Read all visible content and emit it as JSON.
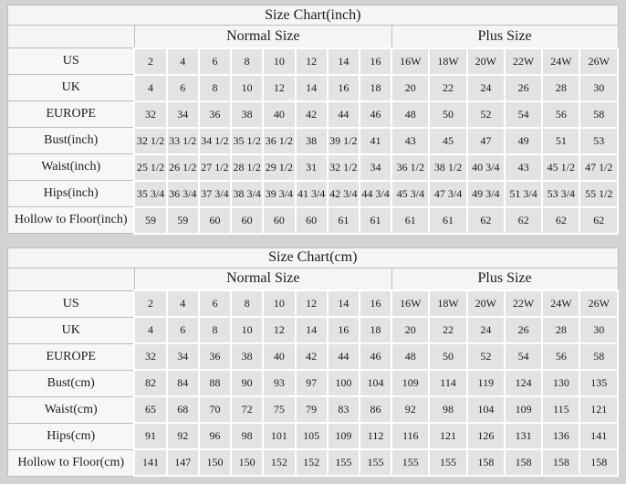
{
  "colors": {
    "page_bg": "#d3d3d3",
    "header_bg": "#f5f5f5",
    "label_bg": "#f7f7f7",
    "cell_bg": "#e3e3e3",
    "cell_gap": "#ffffff",
    "grid_line": "#bdbdbd",
    "text": "#1c1c1c"
  },
  "chart_data": [
    {
      "type": "table",
      "title": "Size Chart(inch)",
      "column_groups": [
        {
          "label": "Normal Size",
          "span": 8
        },
        {
          "label": "Plus Size",
          "span": 6
        }
      ],
      "rows": [
        {
          "label": "US",
          "normal": [
            "2",
            "4",
            "6",
            "8",
            "10",
            "12",
            "14",
            "16"
          ],
          "plus": [
            "16W",
            "18W",
            "20W",
            "22W",
            "24W",
            "26W"
          ]
        },
        {
          "label": "UK",
          "normal": [
            "4",
            "6",
            "8",
            "10",
            "12",
            "14",
            "16",
            "18"
          ],
          "plus": [
            "20",
            "22",
            "24",
            "26",
            "28",
            "30"
          ]
        },
        {
          "label": "EUROPE",
          "normal": [
            "32",
            "34",
            "36",
            "38",
            "40",
            "42",
            "44",
            "46"
          ],
          "plus": [
            "48",
            "50",
            "52",
            "54",
            "56",
            "58"
          ]
        },
        {
          "label": "Bust(inch)",
          "normal": [
            "32 1/2",
            "33 1/2",
            "34 1/2",
            "35 1/2",
            "36 1/2",
            "38",
            "39 1/2",
            "41"
          ],
          "plus": [
            "43",
            "45",
            "47",
            "49",
            "51",
            "53"
          ]
        },
        {
          "label": "Waist(inch)",
          "normal": [
            "25 1/2",
            "26 1/2",
            "27 1/2",
            "28 1/2",
            "29 1/2",
            "31",
            "32 1/2",
            "34"
          ],
          "plus": [
            "36 1/2",
            "38 1/2",
            "40 3/4",
            "43",
            "45 1/2",
            "47 1/2"
          ]
        },
        {
          "label": "Hips(inch)",
          "normal": [
            "35 3/4",
            "36 3/4",
            "37 3/4",
            "38 3/4",
            "39 3/4",
            "41 3/4",
            "42 3/4",
            "44 3/4"
          ],
          "plus": [
            "45 3/4",
            "47 3/4",
            "49 3/4",
            "51 3/4",
            "53 3/4",
            "55 1/2"
          ]
        },
        {
          "label": "Hollow to Floor(inch)",
          "normal": [
            "59",
            "59",
            "60",
            "60",
            "60",
            "60",
            "61",
            "61"
          ],
          "plus": [
            "61",
            "61",
            "62",
            "62",
            "62",
            "62"
          ]
        }
      ]
    },
    {
      "type": "table",
      "title": "Size Chart(cm)",
      "column_groups": [
        {
          "label": "Normal Size",
          "span": 8
        },
        {
          "label": "Plus Size",
          "span": 6
        }
      ],
      "rows": [
        {
          "label": "US",
          "normal": [
            "2",
            "4",
            "6",
            "8",
            "10",
            "12",
            "14",
            "16"
          ],
          "plus": [
            "16W",
            "18W",
            "20W",
            "22W",
            "24W",
            "26W"
          ]
        },
        {
          "label": "UK",
          "normal": [
            "4",
            "6",
            "8",
            "10",
            "12",
            "14",
            "16",
            "18"
          ],
          "plus": [
            "20",
            "22",
            "24",
            "26",
            "28",
            "30"
          ]
        },
        {
          "label": "EUROPE",
          "normal": [
            "32",
            "34",
            "36",
            "38",
            "40",
            "42",
            "44",
            "46"
          ],
          "plus": [
            "48",
            "50",
            "52",
            "54",
            "56",
            "58"
          ]
        },
        {
          "label": "Bust(cm)",
          "normal": [
            "82",
            "84",
            "88",
            "90",
            "93",
            "97",
            "100",
            "104"
          ],
          "plus": [
            "109",
            "114",
            "119",
            "124",
            "130",
            "135"
          ]
        },
        {
          "label": "Waist(cm)",
          "normal": [
            "65",
            "68",
            "70",
            "72",
            "75",
            "79",
            "83",
            "86"
          ],
          "plus": [
            "92",
            "98",
            "104",
            "109",
            "115",
            "121"
          ]
        },
        {
          "label": "Hips(cm)",
          "normal": [
            "91",
            "92",
            "96",
            "98",
            "101",
            "105",
            "109",
            "112"
          ],
          "plus": [
            "116",
            "121",
            "126",
            "131",
            "136",
            "141"
          ]
        },
        {
          "label": "Hollow to Floor(cm)",
          "normal": [
            "141",
            "147",
            "150",
            "150",
            "152",
            "152",
            "155",
            "155"
          ],
          "plus": [
            "155",
            "155",
            "158",
            "158",
            "158",
            "158"
          ]
        }
      ]
    }
  ]
}
